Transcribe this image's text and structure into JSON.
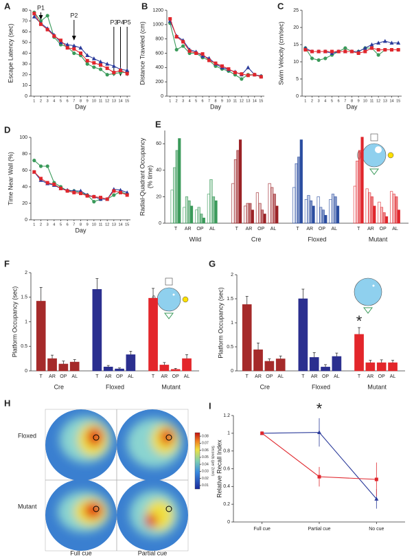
{
  "chart_data": [
    {
      "type": "line",
      "panel": "A",
      "ylabel": "Escape Latency (sec)",
      "xlabel": "Day",
      "x": [
        1,
        2,
        3,
        4,
        5,
        6,
        7,
        8,
        9,
        10,
        11,
        12,
        13,
        14,
        15
      ],
      "xlim": [
        0.5,
        15.5
      ],
      "xticks": [
        1,
        2,
        3,
        4,
        5,
        6,
        7,
        8,
        9,
        10,
        11,
        12,
        13,
        14,
        15
      ],
      "ylim": [
        0,
        80
      ],
      "yticks": [
        0,
        10,
        20,
        30,
        40,
        50,
        60,
        70,
        80
      ],
      "annotations": [
        {
          "text": "P1",
          "x": 2
        },
        {
          "text": "P2",
          "x": 7
        },
        {
          "text": "P3",
          "x": 13
        },
        {
          "text": "P4",
          "x": 14
        },
        {
          "text": "P5",
          "x": 15
        }
      ],
      "series": [
        {
          "color": "#3a9a5a",
          "marker": "circle",
          "values": [
            78,
            70,
            75,
            55,
            48,
            46,
            40,
            38,
            30,
            27,
            25,
            20,
            21,
            22,
            22
          ]
        },
        {
          "color": "#2a3a9a",
          "marker": "triangle",
          "values": [
            74,
            68,
            63,
            57,
            50,
            48,
            47,
            45,
            38,
            35,
            32,
            30,
            28,
            25,
            24
          ]
        },
        {
          "color": "#e0262c",
          "marker": "square",
          "values": [
            77,
            67,
            62,
            56,
            52,
            45,
            44,
            40,
            33,
            31,
            29,
            26,
            22,
            24,
            21
          ]
        }
      ]
    },
    {
      "type": "line",
      "panel": "B",
      "ylabel": "Distance Traveled (cm)",
      "xlabel": "Day",
      "x": [
        1,
        2,
        3,
        4,
        5,
        6,
        7,
        8,
        9,
        10,
        11,
        12,
        13,
        14,
        15
      ],
      "xlim": [
        0.5,
        15.5
      ],
      "xticks": [
        1,
        2,
        3,
        4,
        5,
        6,
        7,
        8,
        9,
        10,
        11,
        12,
        13,
        14,
        15
      ],
      "ylim": [
        0,
        1200
      ],
      "yticks": [
        0,
        200,
        400,
        600,
        800,
        1000,
        1200
      ],
      "series": [
        {
          "color": "#3a9a5a",
          "marker": "circle",
          "values": [
            1020,
            650,
            700,
            600,
            600,
            540,
            500,
            420,
            380,
            350,
            300,
            240,
            300,
            300,
            280
          ]
        },
        {
          "color": "#2a3a9a",
          "marker": "triangle",
          "values": [
            1050,
            840,
            780,
            650,
            620,
            560,
            530,
            450,
            400,
            370,
            340,
            300,
            400,
            300,
            280
          ]
        },
        {
          "color": "#e0262c",
          "marker": "square",
          "values": [
            1080,
            830,
            760,
            630,
            600,
            590,
            500,
            460,
            420,
            380,
            330,
            310,
            290,
            300,
            270
          ]
        }
      ]
    },
    {
      "type": "line",
      "panel": "C",
      "ylabel": "Swim Velocity (cm/sec)",
      "xlabel": "Day",
      "x": [
        1,
        2,
        3,
        4,
        5,
        6,
        7,
        8,
        9,
        10,
        11,
        12,
        13,
        14,
        15
      ],
      "xlim": [
        0.5,
        15.5
      ],
      "xticks": [
        1,
        2,
        3,
        4,
        5,
        6,
        7,
        8,
        9,
        10,
        11,
        12,
        13,
        14,
        15
      ],
      "ylim": [
        0,
        25
      ],
      "yticks": [
        0,
        5,
        10,
        15,
        20,
        25
      ],
      "series": [
        {
          "color": "#3a9a5a",
          "marker": "circle",
          "values": [
            14,
            11,
            10.5,
            11,
            12,
            13,
            14,
            13,
            13,
            14,
            14,
            12,
            13.5,
            13.5,
            13.5
          ]
        },
        {
          "color": "#2a3a9a",
          "marker": "triangle",
          "values": [
            14,
            13,
            13,
            13,
            12.5,
            13,
            13,
            13,
            13,
            14,
            15,
            15.5,
            16,
            15.5,
            15.5
          ]
        },
        {
          "color": "#e0262c",
          "marker": "square",
          "values": [
            13.5,
            13,
            13,
            13,
            13,
            13,
            13,
            13,
            12.5,
            13,
            14,
            13.5,
            13.5,
            13.5,
            13.5
          ]
        }
      ]
    },
    {
      "type": "line",
      "panel": "D",
      "ylabel": "Time Near Wall (%)",
      "xlabel": "Day",
      "x": [
        1,
        2,
        3,
        4,
        5,
        6,
        7,
        8,
        9,
        10,
        11,
        12,
        13,
        14,
        15
      ],
      "xlim": [
        0.5,
        15.5
      ],
      "xticks": [
        1,
        2,
        3,
        4,
        5,
        6,
        7,
        8,
        9,
        10,
        11,
        12,
        13,
        14,
        15
      ],
      "ylim": [
        0,
        100
      ],
      "yticks": [
        0,
        20,
        40,
        60,
        80,
        100
      ],
      "series": [
        {
          "color": "#3a9a5a",
          "marker": "circle",
          "values": [
            72,
            65,
            65,
            45,
            40,
            35,
            35,
            33,
            30,
            22,
            25,
            25,
            30,
            34,
            31
          ]
        },
        {
          "color": "#2a3a9a",
          "marker": "triangle",
          "values": [
            58,
            48,
            44,
            42,
            38,
            36,
            35,
            35,
            30,
            28,
            25,
            25,
            37,
            36,
            33
          ]
        },
        {
          "color": "#e0262c",
          "marker": "square",
          "values": [
            58,
            50,
            45,
            43,
            38,
            35,
            33,
            32,
            29,
            28,
            27,
            25,
            35,
            33,
            30
          ]
        }
      ]
    },
    {
      "type": "bar",
      "panel": "E",
      "ylabel": "Radial-Quadrant Occupancy",
      "ylabel2": "(% time)",
      "categories": [
        "T",
        "AR",
        "OP",
        "AL"
      ],
      "ylim": [
        0,
        70
      ],
      "yticks": [
        0,
        20,
        40,
        60
      ],
      "groups": [
        {
          "name": "Wild",
          "color": "#3a9a5a",
          "values": [
            [
              25,
              42,
              55,
              64
            ],
            [
              12,
              20,
              17,
              13
            ],
            [
              10,
              12,
              7,
              4
            ],
            [
              22,
              33,
              20,
              17
            ]
          ]
        },
        {
          "name": "Cre",
          "color": "#9b2226",
          "values": [
            [
              30,
              48,
              55,
              63
            ],
            [
              13,
              15,
              15,
              10
            ],
            [
              23,
              15,
              10,
              7
            ],
            [
              30,
              27,
              22,
              13
            ]
          ]
        },
        {
          "name": "Floxed",
          "color": "#2a4da0",
          "values": [
            [
              27,
              45,
              50,
              63
            ],
            [
              18,
              21,
              17,
              13
            ],
            [
              20,
              12,
              10,
              6
            ],
            [
              18,
              22,
              20,
              13
            ]
          ]
        },
        {
          "name": "Mutant",
          "color": "#e0262c",
          "values": [
            [
              28,
              47,
              55,
              65
            ],
            [
              26,
              23,
              20,
              13
            ],
            [
              16,
              12,
              8,
              5
            ],
            [
              24,
              22,
              20,
              10
            ]
          ]
        }
      ]
    },
    {
      "type": "bar",
      "panel": "F",
      "ylabel": "Platform Occupancy (sec)",
      "categories": [
        "T",
        "AR",
        "OP",
        "AL"
      ],
      "ylim": [
        0,
        2
      ],
      "yticks": [
        0,
        0.5,
        1,
        1.5,
        2
      ],
      "groups": [
        {
          "name": "Cre",
          "color": "#a52a2a",
          "values": [
            1.42,
            0.25,
            0.14,
            0.18
          ],
          "errors": [
            0.28,
            0.07,
            0.06,
            0.05
          ]
        },
        {
          "name": "Floxed",
          "color": "#2b2f8f",
          "values": [
            1.66,
            0.08,
            0.04,
            0.33
          ],
          "errors": [
            0.22,
            0.03,
            0.02,
            0.07
          ]
        },
        {
          "name": "Mutant",
          "color": "#e3262b",
          "values": [
            1.48,
            0.12,
            0.03,
            0.25
          ],
          "errors": [
            0.2,
            0.05,
            0.02,
            0.08
          ]
        }
      ]
    },
    {
      "type": "bar",
      "panel": "G",
      "ylabel": "Platform Occupancy (sec)",
      "star": "*",
      "categories": [
        "T",
        "AR",
        "OP",
        "AL"
      ],
      "ylim": [
        0,
        2
      ],
      "yticks": [
        0,
        0.5,
        1,
        1.5,
        2
      ],
      "groups": [
        {
          "name": "Cre",
          "color": "#a52a2a",
          "values": [
            1.38,
            0.44,
            0.2,
            0.25
          ],
          "errors": [
            0.17,
            0.14,
            0.05,
            0.06
          ]
        },
        {
          "name": "Floxed",
          "color": "#2b2f8f",
          "values": [
            1.5,
            0.28,
            0.08,
            0.3
          ],
          "errors": [
            0.2,
            0.1,
            0.05,
            0.07
          ]
        },
        {
          "name": "Mutant",
          "color": "#e3262b",
          "values": [
            0.76,
            0.17,
            0.17,
            0.17
          ],
          "errors": [
            0.14,
            0.05,
            0.06,
            0.05
          ]
        }
      ]
    },
    {
      "type": "heatmap",
      "panel": "H",
      "rows": [
        "Floxed",
        "Mutant"
      ],
      "columns": [
        "Full cue",
        "Partial cue"
      ],
      "colorbar": {
        "label": "Seconds (per 2cm²)",
        "lim": [
          0.005,
          0.085
        ],
        "ticks": [
          0.01,
          0.02,
          0.03,
          0.04,
          0.05,
          0.06,
          0.07,
          0.08
        ]
      }
    },
    {
      "type": "line",
      "panel": "I",
      "ylabel": "Relative Recall Index",
      "star": "*",
      "categories": [
        "Full cue",
        "Partial cue",
        "No cue"
      ],
      "ylim": [
        0,
        1.2
      ],
      "yticks": [
        0,
        0.2,
        0.4,
        0.6,
        0.8,
        1,
        1.2
      ],
      "series": [
        {
          "color": "#2a3a9a",
          "marker": "triangle",
          "values": [
            1,
            1.01,
            0.26
          ],
          "errors": [
            0,
            0.16,
            0.11
          ]
        },
        {
          "color": "#e0262c",
          "marker": "square",
          "values": [
            1,
            0.51,
            0.48
          ],
          "errors": [
            0,
            0.11,
            0.19
          ]
        }
      ]
    }
  ]
}
